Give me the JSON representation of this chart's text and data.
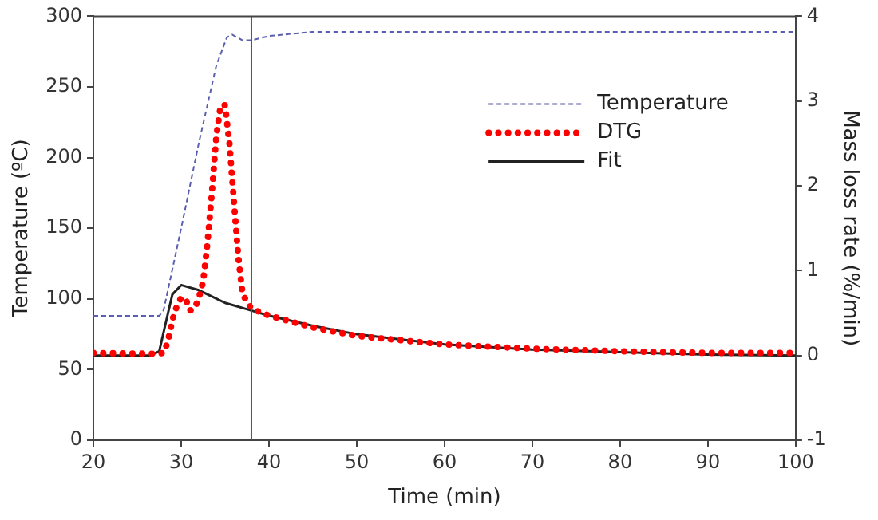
{
  "chart_data": {
    "type": "line",
    "xlabel": "Time (min)",
    "ylabel": "Temperature (ºC)",
    "y2label": "Mass loss rate (%/min)",
    "xlim": [
      20,
      100
    ],
    "xticks": [
      20,
      30,
      40,
      50,
      60,
      70,
      80,
      90,
      100
    ],
    "ylim": [
      0,
      300
    ],
    "yticks": [
      0,
      50,
      100,
      150,
      200,
      250,
      300
    ],
    "y2lim": [
      -1,
      4
    ],
    "y2ticks": [
      -1,
      0,
      1,
      2,
      3,
      4
    ],
    "legend": "top right",
    "grid": false,
    "marker": "none",
    "ref_lines": [
      {
        "axis": "x",
        "value": 38,
        "color": "#555555"
      }
    ],
    "series": [
      {
        "name": "Temperature",
        "color": "#5b5fb0",
        "line_style": "dashed",
        "x": [
          20,
          27.5,
          28,
          30,
          32,
          34,
          35.2,
          35.8,
          37,
          38,
          40,
          45,
          100
        ],
        "values": [
          88,
          88,
          92,
          150,
          210,
          265,
          285,
          287,
          283,
          283,
          286,
          289,
          289
        ]
      },
      {
        "name": "DTG",
        "color": "#ff0000",
        "line_style": "dotted",
        "axis": "y2",
        "x": [
          20,
          27,
          28,
          28.5,
          29,
          29.5,
          30,
          30.5,
          31,
          31.5,
          32,
          32.5,
          33,
          33.5,
          34,
          34.5,
          35,
          35.5,
          36,
          36.5,
          37,
          38,
          40,
          45,
          50,
          60,
          70,
          80,
          90,
          100
        ],
        "values": [
          0.03,
          0.02,
          0.03,
          0.17,
          0.42,
          0.58,
          0.68,
          0.67,
          0.53,
          0.55,
          0.67,
          0.87,
          1.33,
          1.92,
          2.58,
          2.95,
          2.95,
          2.5,
          1.83,
          1.17,
          0.72,
          0.55,
          0.47,
          0.33,
          0.23,
          0.13,
          0.08,
          0.05,
          0.03,
          0.03
        ]
      },
      {
        "name": "Fit",
        "color": "#222222",
        "line_style": "solid",
        "axis": "y2",
        "x": [
          20,
          26.5,
          27.5,
          28.5,
          29,
          30,
          32,
          35,
          38,
          40,
          45,
          50,
          60,
          70,
          80,
          90,
          100
        ],
        "values": [
          0,
          0,
          0.05,
          0.5,
          0.72,
          0.83,
          0.77,
          0.62,
          0.53,
          0.47,
          0.35,
          0.25,
          0.13,
          0.07,
          0.04,
          0.01,
          0
        ]
      }
    ]
  }
}
